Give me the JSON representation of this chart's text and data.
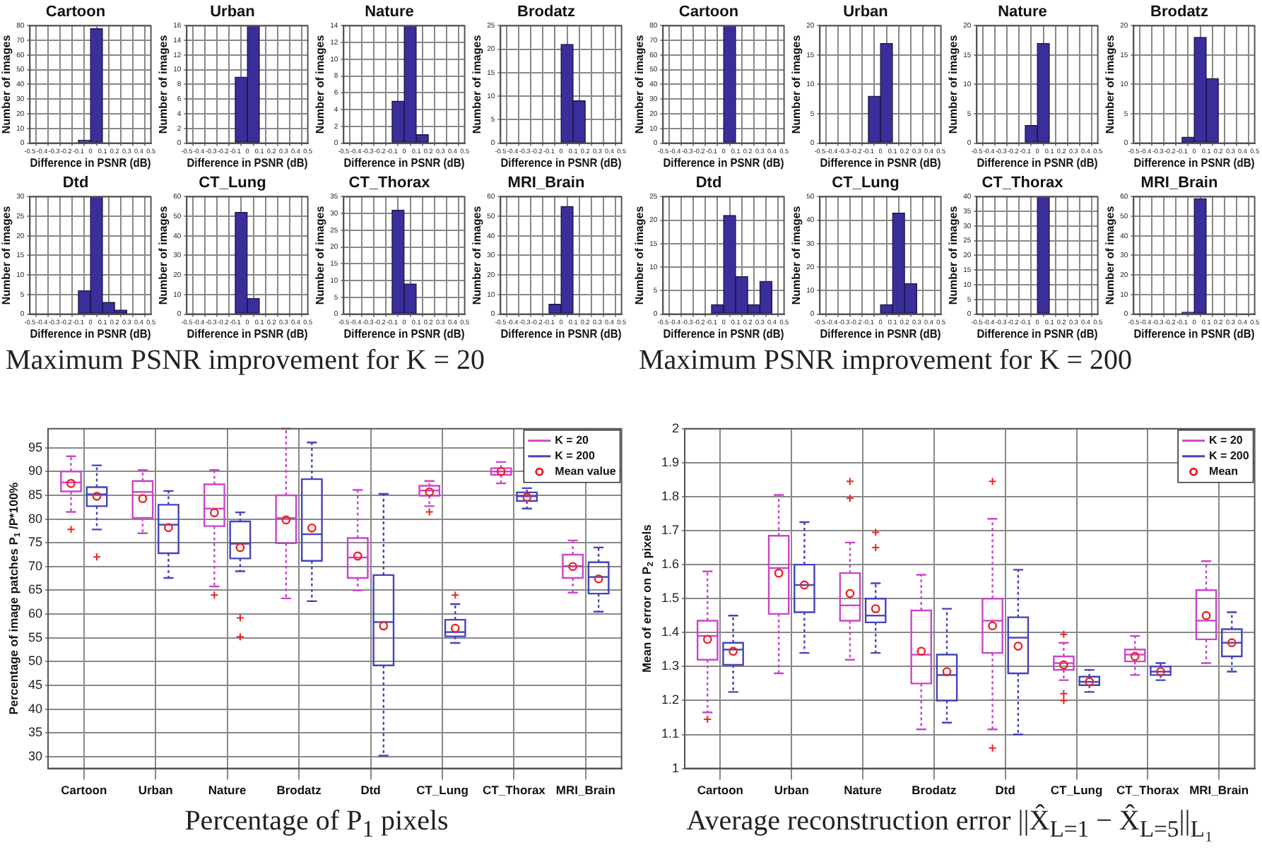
{
  "chart_data": [
    {
      "type": "histogram",
      "title": "Cartoon",
      "xlabel": "Difference in PSNR (dB)",
      "ylabel": "Number of images",
      "bins": [
        -0.5,
        -0.4,
        -0.3,
        -0.2,
        -0.1,
        0,
        0.1,
        0.2,
        0.3,
        0.4,
        0.5
      ],
      "values": [
        0,
        0,
        0,
        0,
        2,
        78,
        0,
        0,
        0,
        0
      ],
      "color": "#3a2f9a",
      "xlim": [
        -0.5,
        0.5
      ],
      "xticks": [
        -0.5,
        -0.4,
        -0.3,
        -0.2,
        -0.1,
        0,
        0.1,
        0.2,
        0.3,
        0.4,
        0.5
      ],
      "ylim": [
        0,
        80
      ],
      "yticks": [
        0,
        10,
        20,
        30,
        40,
        50,
        60,
        70,
        80
      ],
      "grid": true,
      "annotations": [
        "Maximum PSNR improvement for K = 20"
      ]
    },
    {
      "type": "histogram",
      "title": "Urban",
      "xlabel": "Difference in PSNR (dB)",
      "ylabel": "Number of images",
      "bins": [
        -0.5,
        -0.4,
        -0.3,
        -0.2,
        -0.1,
        0,
        0.1,
        0.2,
        0.3,
        0.4,
        0.5
      ],
      "values": [
        0,
        0,
        0,
        0,
        9,
        16,
        0,
        0,
        0,
        0
      ],
      "color": "#3a2f9a",
      "xlim": [
        -0.5,
        0.5
      ],
      "xticks": [
        -0.5,
        -0.4,
        -0.3,
        -0.2,
        -0.1,
        0,
        0.1,
        0.2,
        0.3,
        0.4,
        0.5
      ],
      "ylim": [
        0,
        16
      ],
      "yticks": [
        0,
        2,
        4,
        6,
        8,
        10,
        12,
        14,
        16
      ],
      "grid": true
    },
    {
      "type": "histogram",
      "title": "Nature",
      "xlabel": "Difference in PSNR (dB)",
      "ylabel": "Number of images",
      "bins": [
        -0.5,
        -0.4,
        -0.3,
        -0.2,
        -0.1,
        0,
        0.1,
        0.2,
        0.3,
        0.4,
        0.5
      ],
      "values": [
        0,
        0,
        0,
        0,
        5,
        14,
        1,
        0,
        0,
        0
      ],
      "color": "#3a2f9a",
      "xlim": [
        -0.5,
        0.5
      ],
      "xticks": [
        -0.5,
        -0.4,
        -0.3,
        -0.2,
        -0.1,
        0,
        0.1,
        0.2,
        0.3,
        0.4,
        0.5
      ],
      "ylim": [
        0,
        14
      ],
      "yticks": [
        0,
        2,
        4,
        6,
        8,
        10,
        12,
        14
      ],
      "grid": true
    },
    {
      "type": "histogram",
      "title": "Brodatz",
      "xlabel": "Difference in PSNR (dB)",
      "ylabel": "Number of images",
      "bins": [
        -0.5,
        -0.4,
        -0.3,
        -0.2,
        -0.1,
        0,
        0.1,
        0.2,
        0.3,
        0.4,
        0.5
      ],
      "values": [
        0,
        0,
        0,
        0,
        0,
        21,
        9,
        0,
        0,
        0
      ],
      "color": "#3a2f9a",
      "xlim": [
        -0.5,
        0.5
      ],
      "xticks": [
        -0.5,
        -0.4,
        -0.3,
        -0.2,
        -0.1,
        0,
        0.1,
        0.2,
        0.3,
        0.4,
        0.5
      ],
      "ylim": [
        0,
        25
      ],
      "yticks": [
        0,
        5,
        10,
        15,
        20,
        25
      ],
      "grid": true
    },
    {
      "type": "histogram",
      "title": "Dtd",
      "xlabel": "Difference in PSNR (dB)",
      "ylabel": "Number of images",
      "bins": [
        -0.5,
        -0.4,
        -0.3,
        -0.2,
        -0.1,
        0,
        0.1,
        0.2,
        0.3,
        0.4,
        0.5
      ],
      "values": [
        0,
        0,
        0,
        0,
        6,
        30,
        3,
        1,
        0,
        0
      ],
      "color": "#3a2f9a",
      "xlim": [
        -0.5,
        0.5
      ],
      "xticks": [
        -0.5,
        -0.4,
        -0.3,
        -0.2,
        -0.1,
        0,
        0.1,
        0.2,
        0.3,
        0.4,
        0.5
      ],
      "ylim": [
        0,
        30
      ],
      "yticks": [
        0,
        5,
        10,
        15,
        20,
        25,
        30
      ],
      "grid": true
    },
    {
      "type": "histogram",
      "title": "CT_Lung",
      "xlabel": "Difference in PSNR (dB)",
      "ylabel": "Number of images",
      "bins": [
        -0.5,
        -0.4,
        -0.3,
        -0.2,
        -0.1,
        0,
        0.1,
        0.2,
        0.3,
        0.4,
        0.5
      ],
      "values": [
        0,
        0,
        0,
        0,
        52,
        8,
        0,
        0,
        0,
        0
      ],
      "color": "#3a2f9a",
      "xlim": [
        -0.5,
        0.5
      ],
      "xticks": [
        -0.5,
        -0.4,
        -0.3,
        -0.2,
        -0.1,
        0,
        0.1,
        0.2,
        0.3,
        0.4,
        0.5
      ],
      "ylim": [
        0,
        60
      ],
      "yticks": [
        0,
        10,
        20,
        30,
        40,
        50,
        60
      ],
      "grid": true
    },
    {
      "type": "histogram",
      "title": "CT_Thorax",
      "xlabel": "Difference in PSNR (dB)",
      "ylabel": "Number of images",
      "bins": [
        -0.5,
        -0.4,
        -0.3,
        -0.2,
        -0.1,
        0,
        0.1,
        0.2,
        0.3,
        0.4,
        0.5
      ],
      "values": [
        0,
        0,
        0,
        0,
        31,
        9,
        0,
        0,
        0,
        0
      ],
      "color": "#3a2f9a",
      "xlim": [
        -0.5,
        0.5
      ],
      "xticks": [
        -0.5,
        -0.4,
        -0.3,
        -0.2,
        -0.1,
        0,
        0.1,
        0.2,
        0.3,
        0.4,
        0.5
      ],
      "ylim": [
        0,
        35
      ],
      "yticks": [
        0,
        5,
        10,
        15,
        20,
        25,
        30,
        35
      ],
      "grid": true
    },
    {
      "type": "histogram",
      "title": "MRI_Brain",
      "xlabel": "Difference in PSNR (dB)",
      "ylabel": "Number of images",
      "bins": [
        -0.5,
        -0.4,
        -0.3,
        -0.2,
        -0.1,
        0,
        0.1,
        0.2,
        0.3,
        0.4,
        0.5
      ],
      "values": [
        0,
        0,
        0,
        0,
        5,
        55,
        0,
        0,
        0,
        0
      ],
      "color": "#3a2f9a",
      "xlim": [
        -0.5,
        0.5
      ],
      "xticks": [
        -0.5,
        -0.4,
        -0.3,
        -0.2,
        -0.1,
        0,
        0.1,
        0.2,
        0.3,
        0.4,
        0.5
      ],
      "ylim": [
        0,
        60
      ],
      "yticks": [
        0,
        10,
        20,
        30,
        40,
        50,
        60
      ],
      "grid": true
    },
    {
      "type": "histogram",
      "title": "Cartoon",
      "xlabel": "Difference in PSNR (dB)",
      "ylabel": "Number of images",
      "bins": [
        -0.5,
        -0.4,
        -0.3,
        -0.2,
        -0.1,
        0,
        0.1,
        0.2,
        0.3,
        0.4,
        0.5
      ],
      "values": [
        0,
        0,
        0,
        0,
        0,
        80,
        0,
        0,
        0,
        0
      ],
      "color": "#3a2f9a",
      "xlim": [
        -0.5,
        0.5
      ],
      "xticks": [
        -0.5,
        -0.4,
        -0.3,
        -0.2,
        -0.1,
        0,
        0.1,
        0.2,
        0.3,
        0.4,
        0.5
      ],
      "ylim": [
        0,
        80
      ],
      "yticks": [
        0,
        10,
        20,
        30,
        40,
        50,
        60,
        70,
        80
      ],
      "grid": true,
      "annotations": [
        "Maximum PSNR improvement for K = 200"
      ]
    },
    {
      "type": "histogram",
      "title": "Urban",
      "xlabel": "Difference in PSNR (dB)",
      "ylabel": "Number of images",
      "bins": [
        -0.5,
        -0.4,
        -0.3,
        -0.2,
        -0.1,
        0,
        0.1,
        0.2,
        0.3,
        0.4,
        0.5
      ],
      "values": [
        0,
        0,
        0,
        0,
        8,
        17,
        0,
        0,
        0,
        0
      ],
      "color": "#3a2f9a",
      "xlim": [
        -0.5,
        0.5
      ],
      "xticks": [
        -0.5,
        -0.4,
        -0.3,
        -0.2,
        -0.1,
        0,
        0.1,
        0.2,
        0.3,
        0.4,
        0.5
      ],
      "ylim": [
        0,
        20
      ],
      "yticks": [
        0,
        5,
        10,
        15,
        20
      ],
      "grid": true
    },
    {
      "type": "histogram",
      "title": "Nature",
      "xlabel": "Difference in PSNR (dB)",
      "ylabel": "Number of images",
      "bins": [
        -0.5,
        -0.4,
        -0.3,
        -0.2,
        -0.1,
        0,
        0.1,
        0.2,
        0.3,
        0.4,
        0.5
      ],
      "values": [
        0,
        0,
        0,
        0,
        3,
        17,
        0,
        0,
        0,
        0
      ],
      "color": "#3a2f9a",
      "xlim": [
        -0.5,
        0.5
      ],
      "xticks": [
        -0.5,
        -0.4,
        -0.3,
        -0.2,
        -0.1,
        0,
        0.1,
        0.2,
        0.3,
        0.4,
        0.5
      ],
      "ylim": [
        0,
        20
      ],
      "yticks": [
        0,
        5,
        10,
        15,
        20
      ],
      "grid": true
    },
    {
      "type": "histogram",
      "title": "Brodatz",
      "xlabel": "Difference in PSNR (dB)",
      "ylabel": "Number of images",
      "bins": [
        -0.5,
        -0.4,
        -0.3,
        -0.2,
        -0.1,
        0,
        0.1,
        0.2,
        0.3,
        0.4,
        0.5
      ],
      "values": [
        0,
        0,
        0,
        0,
        1,
        18,
        11,
        0,
        0,
        0
      ],
      "color": "#3a2f9a",
      "xlim": [
        -0.5,
        0.5
      ],
      "xticks": [
        -0.5,
        -0.4,
        -0.3,
        -0.2,
        -0.1,
        0,
        0.1,
        0.2,
        0.3,
        0.4,
        0.5
      ],
      "ylim": [
        0,
        20
      ],
      "yticks": [
        0,
        5,
        10,
        15,
        20
      ],
      "grid": true
    },
    {
      "type": "histogram",
      "title": "Dtd",
      "xlabel": "Difference in PSNR (dB)",
      "ylabel": "Number of images",
      "bins": [
        -0.5,
        -0.4,
        -0.3,
        -0.2,
        -0.1,
        0,
        0.1,
        0.2,
        0.3,
        0.4,
        0.5
      ],
      "values": [
        0,
        0,
        0,
        0,
        2,
        21,
        8,
        2,
        7,
        0
      ],
      "color": "#3a2f9a",
      "xlim": [
        -0.5,
        0.5
      ],
      "xticks": [
        -0.5,
        -0.4,
        -0.3,
        -0.2,
        -0.1,
        0,
        0.1,
        0.2,
        0.3,
        0.4,
        0.5
      ],
      "ylim": [
        0,
        25
      ],
      "yticks": [
        0,
        5,
        10,
        15,
        20,
        25
      ],
      "grid": true
    },
    {
      "type": "histogram",
      "title": "CT_Lung",
      "xlabel": "Difference in PSNR (dB)",
      "ylabel": "Number of images",
      "bins": [
        -0.5,
        -0.4,
        -0.3,
        -0.2,
        -0.1,
        0,
        0.1,
        0.2,
        0.3,
        0.4,
        0.5
      ],
      "values": [
        0,
        0,
        0,
        0,
        0,
        4,
        43,
        13,
        0,
        0
      ],
      "color": "#3a2f9a",
      "xlim": [
        -0.5,
        0.5
      ],
      "xticks": [
        -0.5,
        -0.4,
        -0.3,
        -0.2,
        -0.1,
        0,
        0.1,
        0.2,
        0.3,
        0.4,
        0.5
      ],
      "ylim": [
        0,
        50
      ],
      "yticks": [
        0,
        10,
        20,
        30,
        40,
        50
      ],
      "grid": true
    },
    {
      "type": "histogram",
      "title": "CT_Thorax",
      "xlabel": "Difference in PSNR (dB)",
      "ylabel": "Number of images",
      "bins": [
        -0.5,
        -0.4,
        -0.3,
        -0.2,
        -0.1,
        0,
        0.1,
        0.2,
        0.3,
        0.4,
        0.5
      ],
      "values": [
        0,
        0,
        0,
        0,
        0,
        40,
        0,
        0,
        0,
        0
      ],
      "color": "#3a2f9a",
      "xlim": [
        -0.5,
        0.5
      ],
      "xticks": [
        -0.5,
        -0.4,
        -0.3,
        -0.2,
        -0.1,
        0,
        0.1,
        0.2,
        0.3,
        0.4,
        0.5
      ],
      "ylim": [
        0,
        40
      ],
      "yticks": [
        0,
        5,
        10,
        15,
        20,
        25,
        30,
        35,
        40
      ],
      "grid": true
    },
    {
      "type": "histogram",
      "title": "MRI_Brain",
      "xlabel": "Difference in PSNR (dB)",
      "ylabel": "Number of images",
      "bins": [
        -0.5,
        -0.4,
        -0.3,
        -0.2,
        -0.1,
        0,
        0.1,
        0.2,
        0.3,
        0.4,
        0.5
      ],
      "values": [
        0,
        0,
        0,
        0,
        1,
        59,
        0,
        0,
        0,
        0
      ],
      "color": "#3a2f9a",
      "xlim": [
        -0.5,
        0.5
      ],
      "xticks": [
        -0.5,
        -0.4,
        -0.3,
        -0.2,
        -0.1,
        0,
        0.1,
        0.2,
        0.3,
        0.4,
        0.5
      ],
      "ylim": [
        0,
        60
      ],
      "yticks": [
        0,
        10,
        20,
        30,
        40,
        50,
        60
      ],
      "grid": true
    },
    {
      "type": "box",
      "categories": [
        "Cartoon",
        "Urban",
        "Nature",
        "Brodatz",
        "Dtd",
        "CT_Lung",
        "CT_Thorax",
        "MRI_Brain"
      ],
      "ylabel": "Percentage of image patches P$_{1}$ /P*100%",
      "ylim": [
        27.5,
        99
      ],
      "yticks": [
        30,
        35,
        40,
        45,
        50,
        55,
        60,
        65,
        70,
        75,
        80,
        85,
        90,
        95
      ],
      "grid": true,
      "legend": "top right",
      "annotations": [
        "Percentage of P$_{1}$ pixels"
      ],
      "series": [
        {
          "name": "K = 20",
          "color": "#cc44cc",
          "boxes": [
            {
              "low": 81.5,
              "q1": 85.8,
              "median": 87.7,
              "q3": 90,
              "high": 93.2,
              "outliers": [
                77.8
              ]
            },
            {
              "low": 77,
              "q1": 80.2,
              "median": 85.7,
              "q3": 88,
              "high": 90.3
            },
            {
              "low": 65.8,
              "q1": 78.5,
              "median": 82.2,
              "q3": 87.3,
              "high": 90.3,
              "outliers": [
                64
              ]
            },
            {
              "low": 63.3,
              "q1": 74.9,
              "median": 80.2,
              "q3": 85,
              "high": 99
            },
            {
              "low": 65,
              "q1": 67.6,
              "median": 71.9,
              "q3": 76,
              "high": 86.1
            },
            {
              "low": 82.7,
              "q1": 84.9,
              "median": 86,
              "q3": 87,
              "high": 88,
              "outliers": [
                81.5
              ]
            },
            {
              "low": 87.5,
              "q1": 89.3,
              "median": 90,
              "q3": 90.7,
              "high": 92
            },
            {
              "low": 64.5,
              "q1": 67.6,
              "median": 70.1,
              "q3": 72.5,
              "high": 75.5
            }
          ]
        },
        {
          "name": "K = 200",
          "color": "#4444bb",
          "boxes": [
            {
              "low": 77.8,
              "q1": 82.7,
              "median": 85.2,
              "q3": 86.7,
              "high": 91.3,
              "outliers": [
                72
              ]
            },
            {
              "low": 67.6,
              "q1": 72.8,
              "median": 78.8,
              "q3": 83,
              "high": 85.9
            },
            {
              "low": 69,
              "q1": 71.7,
              "median": 74.8,
              "q3": 79.5,
              "high": 81.4,
              "outliers": [
                59.2,
                55.2
              ]
            },
            {
              "low": 62.7,
              "q1": 71.2,
              "median": 76.8,
              "q3": 88.4,
              "high": 96.1
            },
            {
              "low": 30.2,
              "q1": 49.2,
              "median": 58.3,
              "q3": 68.2,
              "high": 85.3
            },
            {
              "low": 53.9,
              "q1": 55.3,
              "median": 56.2,
              "q3": 58.8,
              "high": 62.1,
              "outliers": [
                64
              ]
            },
            {
              "low": 82.2,
              "q1": 83.8,
              "median": 84.8,
              "q3": 85.6,
              "high": 86.5
            },
            {
              "low": 60.5,
              "q1": 64.3,
              "median": 67.8,
              "q3": 70.9,
              "high": 74
            }
          ]
        },
        {
          "name": "Mean value",
          "type": "scatter",
          "marker": "circle",
          "color": "#ee2222",
          "x": [
            "Cartoon",
            "Cartoon",
            "Urban",
            "Urban",
            "Nature",
            "Nature",
            "Brodatz",
            "Brodatz",
            "Dtd",
            "Dtd",
            "CT_Lung",
            "CT_Lung",
            "CT_Thorax",
            "CT_Thorax",
            "MRI_Brain",
            "MRI_Brain"
          ],
          "values": [
            87.5,
            84.8,
            84.3,
            78.2,
            81.3,
            74,
            79.8,
            78.1,
            72.2,
            57.5,
            85.7,
            57,
            90,
            84.6,
            70,
            67.4
          ]
        }
      ]
    },
    {
      "type": "box",
      "categories": [
        "Cartoon",
        "Urban",
        "Nature",
        "Brodatz",
        "Dtd",
        "CT_Lung",
        "CT_Thorax",
        "MRI_Brain"
      ],
      "ylabel": "Mean of error on P$_{2}$ pixels",
      "ylim": [
        1,
        2
      ],
      "yticks": [
        1,
        1.1,
        1.2,
        1.3,
        1.4,
        1.5,
        1.6,
        1.7,
        1.8,
        1.9,
        2
      ],
      "grid": true,
      "legend": "top right",
      "annotations": [
        "Average reconstruction error ||X̂$_{L=1}$ − X̂$_{L=5}$||$_{L₁}$"
      ],
      "series": [
        {
          "name": "K = 20",
          "color": "#cc44cc",
          "boxes": [
            {
              "low": 1.165,
              "q1": 1.32,
              "median": 1.39,
              "q3": 1.435,
              "high": 1.58,
              "outliers": [
                1.145
              ]
            },
            {
              "low": 1.28,
              "q1": 1.455,
              "median": 1.59,
              "q3": 1.685,
              "high": 1.805
            },
            {
              "low": 1.32,
              "q1": 1.435,
              "median": 1.48,
              "q3": 1.575,
              "high": 1.665,
              "outliers": [
                1.795,
                1.845
              ]
            },
            {
              "low": 1.115,
              "q1": 1.25,
              "median": 1.335,
              "q3": 1.465,
              "high": 1.57
            },
            {
              "low": 1.115,
              "q1": 1.34,
              "median": 1.435,
              "q3": 1.5,
              "high": 1.735,
              "outliers": [
                1.06,
                1.845
              ]
            },
            {
              "low": 1.26,
              "q1": 1.29,
              "median": 1.31,
              "q3": 1.33,
              "high": 1.37,
              "outliers": [
                1.2,
                1.22,
                1.395
              ]
            },
            {
              "low": 1.275,
              "q1": 1.315,
              "median": 1.335,
              "q3": 1.35,
              "high": 1.39
            },
            {
              "low": 1.31,
              "q1": 1.38,
              "median": 1.435,
              "q3": 1.525,
              "high": 1.61
            }
          ]
        },
        {
          "name": "K = 200",
          "color": "#4444bb",
          "boxes": [
            {
              "low": 1.225,
              "q1": 1.305,
              "median": 1.35,
              "q3": 1.37,
              "high": 1.45
            },
            {
              "low": 1.34,
              "q1": 1.46,
              "median": 1.54,
              "q3": 1.6,
              "high": 1.725
            },
            {
              "low": 1.34,
              "q1": 1.43,
              "median": 1.45,
              "q3": 1.5,
              "high": 1.545,
              "outliers": [
                1.65,
                1.695
              ]
            },
            {
              "low": 1.135,
              "q1": 1.2,
              "median": 1.275,
              "q3": 1.335,
              "high": 1.47
            },
            {
              "low": 1.1,
              "q1": 1.28,
              "median": 1.385,
              "q3": 1.445,
              "high": 1.585
            },
            {
              "low": 1.225,
              "q1": 1.245,
              "median": 1.255,
              "q3": 1.27,
              "high": 1.29
            },
            {
              "low": 1.26,
              "q1": 1.275,
              "median": 1.285,
              "q3": 1.3,
              "high": 1.31
            },
            {
              "low": 1.285,
              "q1": 1.33,
              "median": 1.37,
              "q3": 1.41,
              "high": 1.46
            }
          ]
        },
        {
          "name": "Mean",
          "type": "scatter",
          "marker": "circle",
          "color": "#ee2222",
          "x": [
            "Cartoon",
            "Cartoon",
            "Urban",
            "Urban",
            "Nature",
            "Nature",
            "Brodatz",
            "Brodatz",
            "Dtd",
            "Dtd",
            "CT_Lung",
            "CT_Lung",
            "CT_Thorax",
            "CT_Thorax",
            "MRI_Brain",
            "MRI_Brain"
          ],
          "values": [
            1.38,
            1.345,
            1.575,
            1.54,
            1.515,
            1.47,
            1.345,
            1.285,
            1.42,
            1.36,
            1.305,
            1.255,
            1.33,
            1.285,
            1.45,
            1.37
          ]
        }
      ]
    }
  ]
}
